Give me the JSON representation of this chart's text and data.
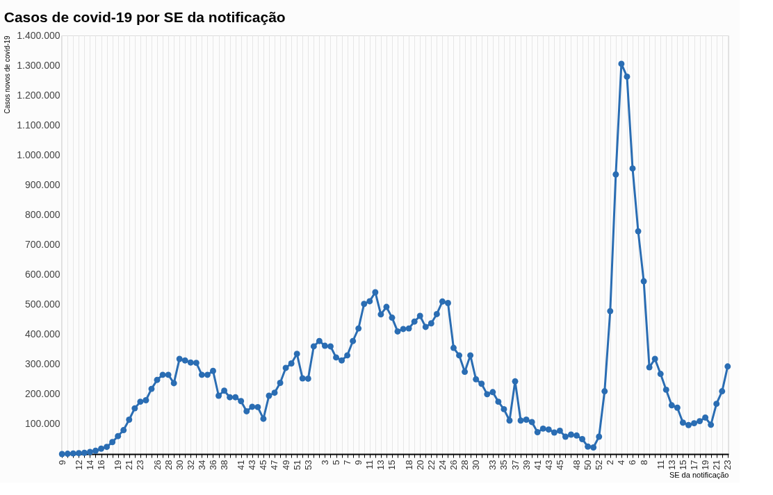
{
  "chart_data": {
    "type": "line",
    "title": "Casos de covid-19 por SE da notificação",
    "xlabel": "SE da notificação",
    "ylabel": "Casos novos de covid-19",
    "categories": [
      "9",
      null,
      null,
      "12",
      null,
      "14",
      null,
      "16",
      null,
      null,
      "19",
      null,
      "21",
      null,
      "23",
      null,
      null,
      "26",
      null,
      "28",
      null,
      "30",
      null,
      "32",
      null,
      "34",
      null,
      "36",
      null,
      "38",
      null,
      null,
      "41",
      null,
      "43",
      null,
      "45",
      null,
      "47",
      null,
      "49",
      null,
      "51",
      null,
      "53",
      null,
      null,
      "3",
      null,
      "5",
      null,
      "7",
      null,
      "9",
      null,
      "11",
      null,
      "13",
      null,
      "15",
      null,
      null,
      "18",
      null,
      "20",
      null,
      "22",
      null,
      "24",
      null,
      "26",
      null,
      "28",
      null,
      "30",
      null,
      null,
      "33",
      null,
      "35",
      null,
      "37",
      null,
      "39",
      null,
      "41",
      null,
      "43",
      null,
      "45",
      null,
      null,
      "48",
      null,
      "50",
      null,
      "52",
      null,
      "2",
      null,
      "4",
      null,
      "6",
      null,
      "8",
      null,
      null,
      "11",
      null,
      "13",
      null,
      "15",
      null,
      "17",
      null,
      "19",
      null,
      "21",
      null,
      "23"
    ],
    "series": [
      {
        "color": "#2a6db3",
        "values": [
          0,
          1000,
          2000,
          3000,
          4000,
          7000,
          11000,
          18000,
          24000,
          40000,
          60000,
          80000,
          115000,
          153000,
          175000,
          180000,
          218000,
          248000,
          265000,
          265000,
          237000,
          318000,
          313000,
          306000,
          305000,
          265000,
          265000,
          278000,
          195000,
          212000,
          190000,
          190000,
          177000,
          143000,
          158000,
          157000,
          118000,
          195000,
          205000,
          238000,
          288000,
          303000,
          335000,
          253000,
          252000,
          360000,
          378000,
          362000,
          360000,
          323000,
          313000,
          330000,
          378000,
          420000,
          502000,
          511000,
          541000,
          467000,
          492000,
          456000,
          410000,
          418000,
          420000,
          443000,
          462000,
          425000,
          437000,
          468000,
          510000,
          505000,
          355000,
          330000,
          275000,
          330000,
          250000,
          235000,
          200000,
          207000,
          175000,
          150000,
          112000,
          243000,
          112000,
          115000,
          107000,
          73000,
          85000,
          82000,
          72000,
          78000,
          58000,
          65000,
          62000,
          50000,
          25000,
          22000,
          58000,
          210000,
          478000,
          935000,
          1305000,
          1262000,
          955000,
          745000,
          578000,
          290000,
          318000,
          268000,
          215000,
          163000,
          155000,
          105000,
          97000,
          103000,
          110000,
          122000,
          98000,
          168000,
          210000,
          293000
        ]
      }
    ],
    "ylim": [
      0,
      1400000
    ],
    "yticks": [
      {
        "value": 100000,
        "label": "100.000"
      },
      {
        "value": 200000,
        "label": "200.000"
      },
      {
        "value": 300000,
        "label": "300.000"
      },
      {
        "value": 400000,
        "label": "400.000"
      },
      {
        "value": 500000,
        "label": "500.000"
      },
      {
        "value": 600000,
        "label": "600.000"
      },
      {
        "value": 700000,
        "label": "700.000"
      },
      {
        "value": 800000,
        "label": "800.000"
      },
      {
        "value": 900000,
        "label": "900.000"
      },
      {
        "value": 1000000,
        "label": "1.000.000"
      },
      {
        "value": 1100000,
        "label": "1.100.000"
      },
      {
        "value": 1200000,
        "label": "1.200.000"
      },
      {
        "value": 1300000,
        "label": "1.300.000"
      },
      {
        "value": 1400000,
        "label": "1.400.000"
      }
    ],
    "grid": "x",
    "marker": "circle",
    "line_style": "solid"
  }
}
